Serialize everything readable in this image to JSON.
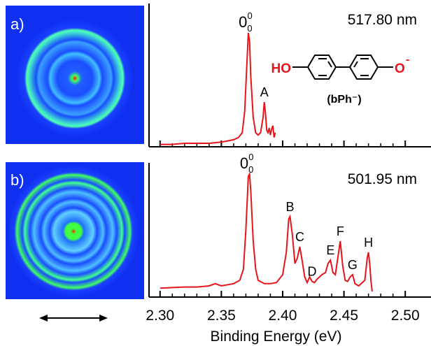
{
  "chart_data": [
    {
      "type": "line",
      "panel_label": "a)",
      "wavelength": "517.80 nm",
      "color": "#e8141c",
      "xlim": [
        2.291,
        2.521
      ],
      "ylim": [
        0,
        1.22
      ],
      "xticks": [
        2.3,
        2.35,
        2.4,
        2.45,
        2.5
      ],
      "minor_xticks": [
        2.31,
        2.32,
        2.33,
        2.34,
        2.36,
        2.37,
        2.38,
        2.39,
        2.41,
        2.42,
        2.43,
        2.44,
        2.46,
        2.47,
        2.48,
        2.49
      ],
      "x": [
        2.3,
        2.31,
        2.32,
        2.33,
        2.34,
        2.35,
        2.355,
        2.36,
        2.364,
        2.367,
        2.369,
        2.371,
        2.372,
        2.373,
        2.374,
        2.376,
        2.378,
        2.38,
        2.382,
        2.384,
        2.385,
        2.386,
        2.387,
        2.388,
        2.389,
        2.39,
        2.391,
        2.392,
        2.393,
        2.394
      ],
      "values": [
        0.02,
        0.02,
        0.03,
        0.03,
        0.03,
        0.04,
        0.05,
        0.06,
        0.08,
        0.12,
        0.3,
        0.75,
        0.97,
        0.9,
        0.6,
        0.25,
        0.12,
        0.1,
        0.12,
        0.25,
        0.38,
        0.28,
        0.14,
        0.12,
        0.16,
        0.1,
        0.15,
        0.18,
        0.08,
        0.12
      ],
      "annotations": [
        {
          "text": "0",
          "sup": "0",
          "sub": "0",
          "x": 2.372
        },
        {
          "text": "A",
          "x": 2.385
        }
      ],
      "molecule": {
        "left": "HO",
        "right": "O",
        "charge": "-",
        "name": "(bPh⁻)"
      }
    },
    {
      "type": "line",
      "panel_label": "b)",
      "wavelength": "501.95 nm",
      "color": "#e8141c",
      "xlim": [
        2.291,
        2.521
      ],
      "ylim": [
        0,
        1.2
      ],
      "xticks": [
        {
          "value": 2.3,
          "label": "2.30"
        },
        {
          "value": 2.35,
          "label": "2.35"
        },
        {
          "value": 2.4,
          "label": "2.40"
        },
        {
          "value": 2.45,
          "label": "2.45"
        },
        {
          "value": 2.5,
          "label": "2.50"
        }
      ],
      "minor_xticks": [
        2.31,
        2.32,
        2.33,
        2.34,
        2.36,
        2.37,
        2.38,
        2.39,
        2.41,
        2.42,
        2.43,
        2.44,
        2.46,
        2.47,
        2.48,
        2.49
      ],
      "xlabel": "Binding Energy (eV)",
      "x": [
        2.3,
        2.32,
        2.33,
        2.34,
        2.345,
        2.35,
        2.36,
        2.365,
        2.368,
        2.37,
        2.372,
        2.373,
        2.374,
        2.376,
        2.378,
        2.38,
        2.385,
        2.39,
        2.395,
        2.4,
        2.403,
        2.405,
        2.406,
        2.408,
        2.41,
        2.412,
        2.414,
        2.416,
        2.418,
        2.42,
        2.422,
        2.424,
        2.426,
        2.428,
        2.43,
        2.432,
        2.435,
        2.437,
        2.439,
        2.441,
        2.443,
        2.445,
        2.447,
        2.449,
        2.451,
        2.453,
        2.455,
        2.457,
        2.459,
        2.462,
        2.465,
        2.467,
        2.469,
        2.47,
        2.471,
        2.472,
        2.473
      ],
      "values": [
        0.08,
        0.09,
        0.09,
        0.1,
        0.12,
        0.1,
        0.12,
        0.15,
        0.25,
        0.6,
        1.08,
        1.1,
        0.95,
        0.5,
        0.25,
        0.15,
        0.12,
        0.12,
        0.13,
        0.2,
        0.4,
        0.7,
        0.72,
        0.55,
        0.3,
        0.35,
        0.45,
        0.32,
        0.18,
        0.13,
        0.18,
        0.14,
        0.13,
        0.16,
        0.18,
        0.2,
        0.22,
        0.3,
        0.33,
        0.22,
        0.2,
        0.35,
        0.5,
        0.28,
        0.15,
        0.14,
        0.18,
        0.2,
        0.12,
        0.1,
        0.13,
        0.15,
        0.35,
        0.4,
        0.3,
        0.15,
        0.05
      ],
      "annotations": [
        {
          "text": "0",
          "sup": "0",
          "sub": "0",
          "x": 2.373
        },
        {
          "text": "B",
          "x": 2.406
        },
        {
          "text": "C",
          "x": 2.414
        },
        {
          "text": "D",
          "x": 2.424
        },
        {
          "text": "E",
          "x": 2.439
        },
        {
          "text": "F",
          "x": 2.447
        },
        {
          "text": "G",
          "x": 2.457
        },
        {
          "text": "H",
          "x": 2.47
        }
      ]
    }
  ]
}
